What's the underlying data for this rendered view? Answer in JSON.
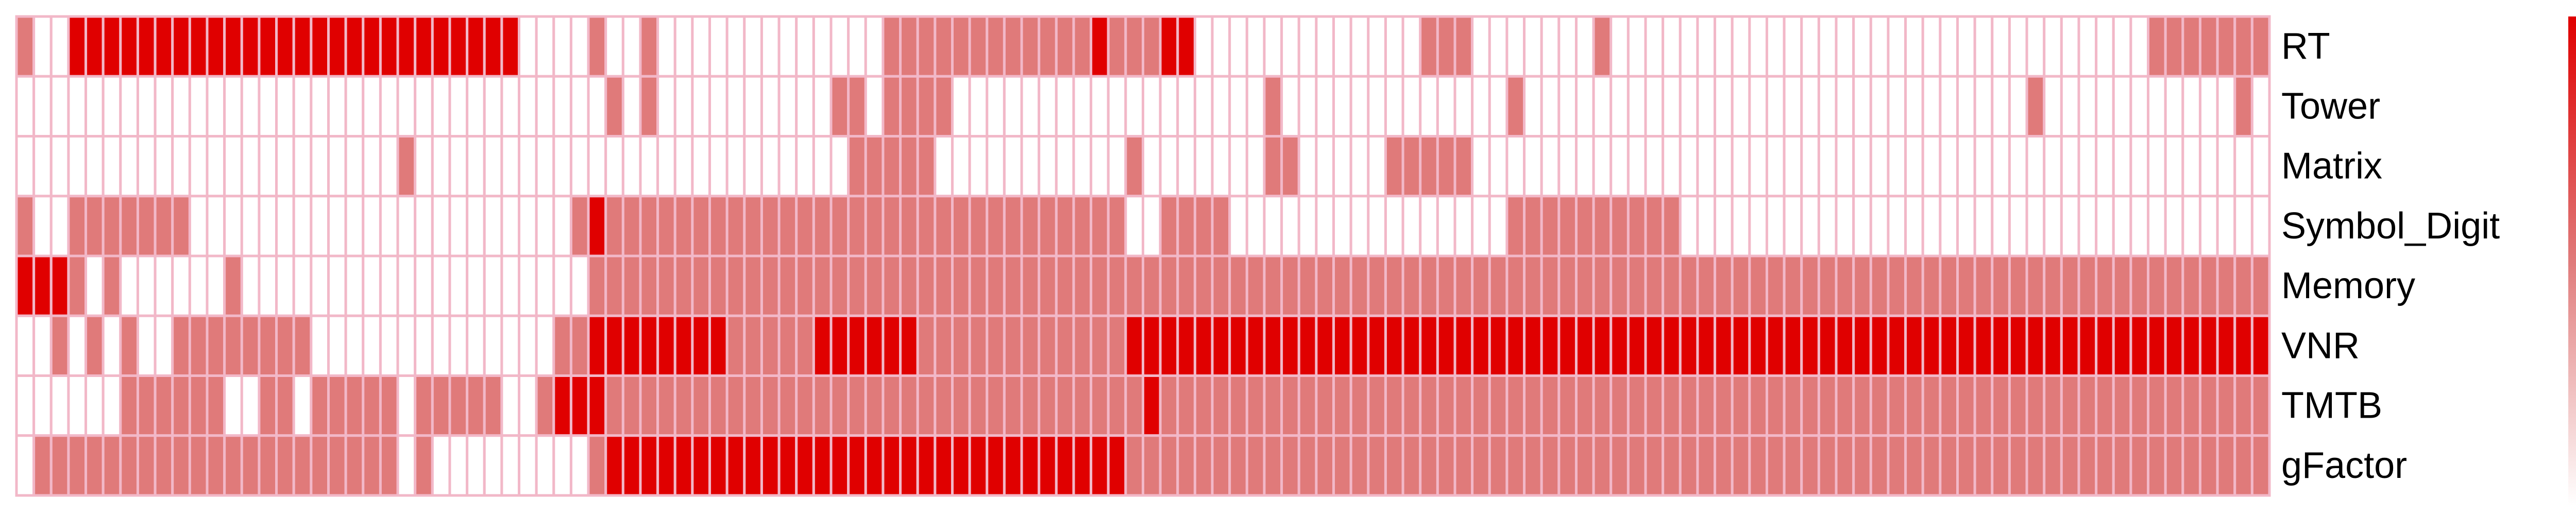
{
  "chart_data": {
    "type": "heatmap",
    "title": "",
    "xlabel": "",
    "ylabel": "",
    "rows": [
      "RT",
      "Tower",
      "Matrix",
      "Symbol_Digit",
      "Memory",
      "VNR",
      "TMTB",
      "gFactor"
    ],
    "n_columns": 130,
    "value_range": [
      0,
      2
    ],
    "colorbar_ticks": [
      "2",
      "1.5",
      "1",
      "0.5",
      "0"
    ],
    "color_low": "#ffffff",
    "color_mid": "#e07a7a",
    "color_high": "#e00000",
    "grid_color": "#f2b8c8",
    "values": [
      "1002222222222222222222222222200001001000000000000011111111111121112200000000000001110000000100000000000000000000000000000001111111111",
      "0000000000000000000000000000000000101000000000011011110000000000000000001000000000000010000000000000000000000000000010000000000010000",
      "0000000000000000000000100000000000000000000000001111100000000000100000001100000111110000000000000000000000000000000000000000000000000",
      "1001111111000000000000000000000012111111111111111111111111111111001111000000000000000011111111110000000000000000000000000000000000000",
      "2221010000001000000000000000000001111111111111111111111111111111111111111111111111111111111111111111111111111111111111111111111111111",
      "0010101001111111100000000000000112222222211111222222111111111111222222222222222222222222222222222222222222222222222222222222222222222",
      "0000001111110011011111011111001222111111111111111111111111111111121111111111111111111111111111111111111111111111111111111111111111111",
      "0111111111111111111111010000000001222222222222222222222222222222111111111111111111111111111111111111111111111111111111111111111111111"
    ]
  }
}
